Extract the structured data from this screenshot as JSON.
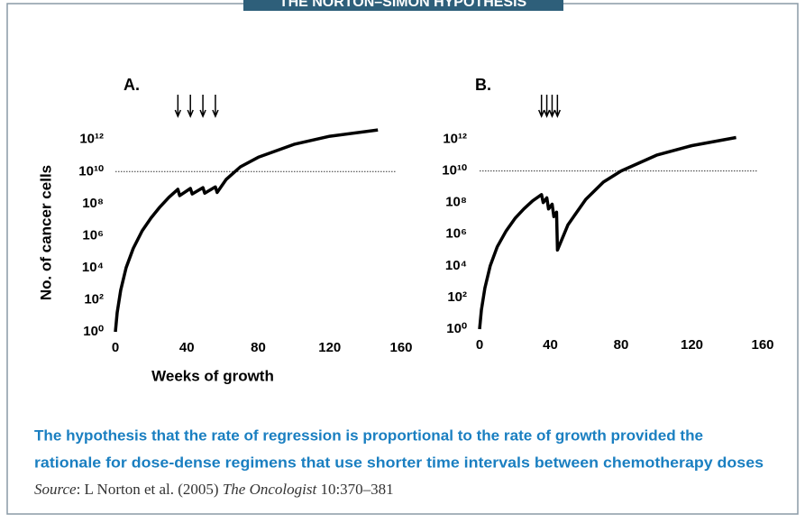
{
  "header": {
    "title": "THE NORTON–SIMON HYPOTHESIS"
  },
  "chart_data": [
    {
      "type": "line",
      "title": "A.",
      "y_label": "No. of cancer cells",
      "x_label": "Weeks of growth",
      "log_y": true,
      "xlim": [
        0,
        160
      ],
      "xticks": [
        0,
        40,
        80,
        120,
        160
      ],
      "ylim": [
        1,
        10000000000000.0
      ],
      "yticks": [
        {
          "value": 1,
          "label": "10⁰"
        },
        {
          "value": 100,
          "label": "10²"
        },
        {
          "value": 10000,
          "label": "10⁴"
        },
        {
          "value": 1000000,
          "label": "10⁶"
        },
        {
          "value": 100000000,
          "label": "10⁸"
        },
        {
          "value": 10000000000,
          "label": "10¹⁰"
        },
        {
          "value": 1000000000000,
          "label": "10¹²"
        }
      ],
      "hline": 10000000000,
      "arrows_x": [
        35,
        42,
        49,
        56
      ],
      "series": [
        {
          "color": "#000000",
          "x": [
            0,
            1,
            3,
            6,
            10,
            15,
            20,
            25,
            30,
            35,
            36,
            42,
            43,
            49,
            50,
            56,
            57,
            62,
            70,
            80,
            100,
            120,
            147
          ],
          "values": [
            1,
            16,
            400,
            10000,
            160000,
            2000000,
            13000000,
            63000000,
            250000000,
            790000000,
            320000000,
            890000000,
            400000000,
            1000000000,
            450000000,
            1100000000,
            500000000,
            3200000000,
            20000000000,
            79000000000,
            500000000000,
            1600000000000,
            4000000000000
          ]
        }
      ]
    },
    {
      "type": "line",
      "title": "B.",
      "log_y": true,
      "xlim": [
        0,
        160
      ],
      "xticks": [
        0,
        40,
        80,
        120,
        160
      ],
      "ylim": [
        1,
        10000000000000.0
      ],
      "yticks": [
        {
          "value": 1,
          "label": "10⁰"
        },
        {
          "value": 100,
          "label": "10²"
        },
        {
          "value": 10000,
          "label": "10⁴"
        },
        {
          "value": 1000000,
          "label": "10⁶"
        },
        {
          "value": 100000000,
          "label": "10⁸"
        },
        {
          "value": 10000000000,
          "label": "10¹⁰"
        },
        {
          "value": 1000000000000,
          "label": "10¹²"
        }
      ],
      "hline": 10000000000,
      "arrows_x": [
        35,
        38,
        41,
        44
      ],
      "series": [
        {
          "color": "#000000",
          "x": [
            0,
            1,
            3,
            6,
            10,
            15,
            20,
            25,
            30,
            35,
            36,
            38,
            39,
            41,
            42,
            43.5,
            44,
            50,
            60,
            70,
            80,
            100,
            120,
            145
          ],
          "values": [
            1,
            16,
            400,
            10000,
            160000,
            1600000,
            10000000,
            40000000,
            130000000,
            320000000,
            100000000,
            200000000,
            40000000,
            79000000,
            13000000,
            25000000,
            100000,
            4000000,
            160000000,
            2000000000,
            10000000000,
            100000000000,
            400000000000,
            1300000000000
          ]
        }
      ]
    }
  ],
  "caption": {
    "lines": [
      "The hypothesis that the rate of regression is proportional to the rate of growth provided the",
      "rationale for dose-dense regimens that use shorter time intervals between chemotherapy doses"
    ]
  },
  "source": {
    "parts": [
      "Source",
      ": L Norton et al. (2005) ",
      "The Oncologist",
      " 10:370–381"
    ]
  }
}
